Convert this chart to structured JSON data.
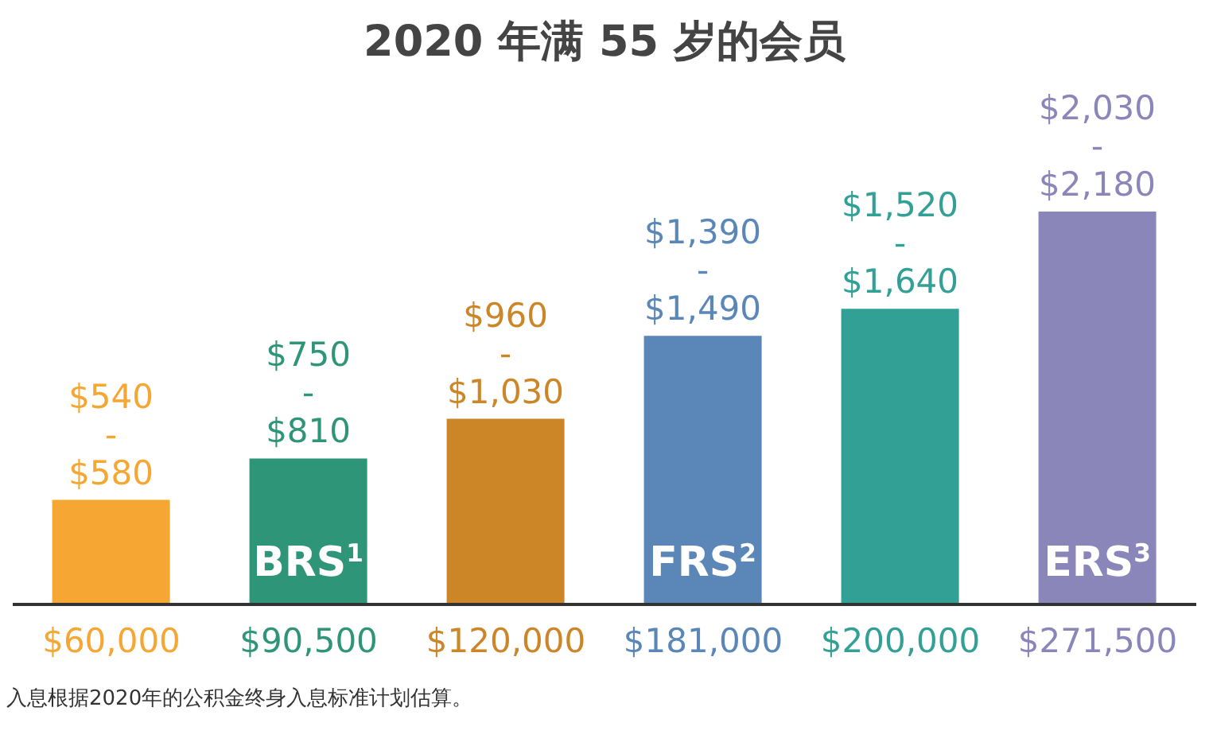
{
  "chart_data": {
    "type": "bar",
    "title": "2020 年满 55 岁的会员",
    "categories": [
      "$60,000",
      "$90,500",
      "$120,000",
      "$181,000",
      "$200,000",
      "$271,500"
    ],
    "values": [
      580,
      810,
      1030,
      1490,
      1640,
      2180
    ],
    "colors": [
      "#f6a632",
      "#2e9578",
      "#cc8628",
      "#5a87b8",
      "#33a096",
      "#8b86ba"
    ],
    "value_labels": [
      "$540\n-\n$580",
      "$750\n-\n$810",
      "$960\n-\n$1,030",
      "$1,390\n-\n$1,490",
      "$1,520\n-\n$1,640",
      "$2,030\n-\n$2,180"
    ],
    "annotations": [
      "BRS$^{1}$",
      "FRS$^{2}$",
      "ERS$^{3}$",
      "入息根据2020年的公积金终身入息标准计划估算。"
    ]
  }
}
